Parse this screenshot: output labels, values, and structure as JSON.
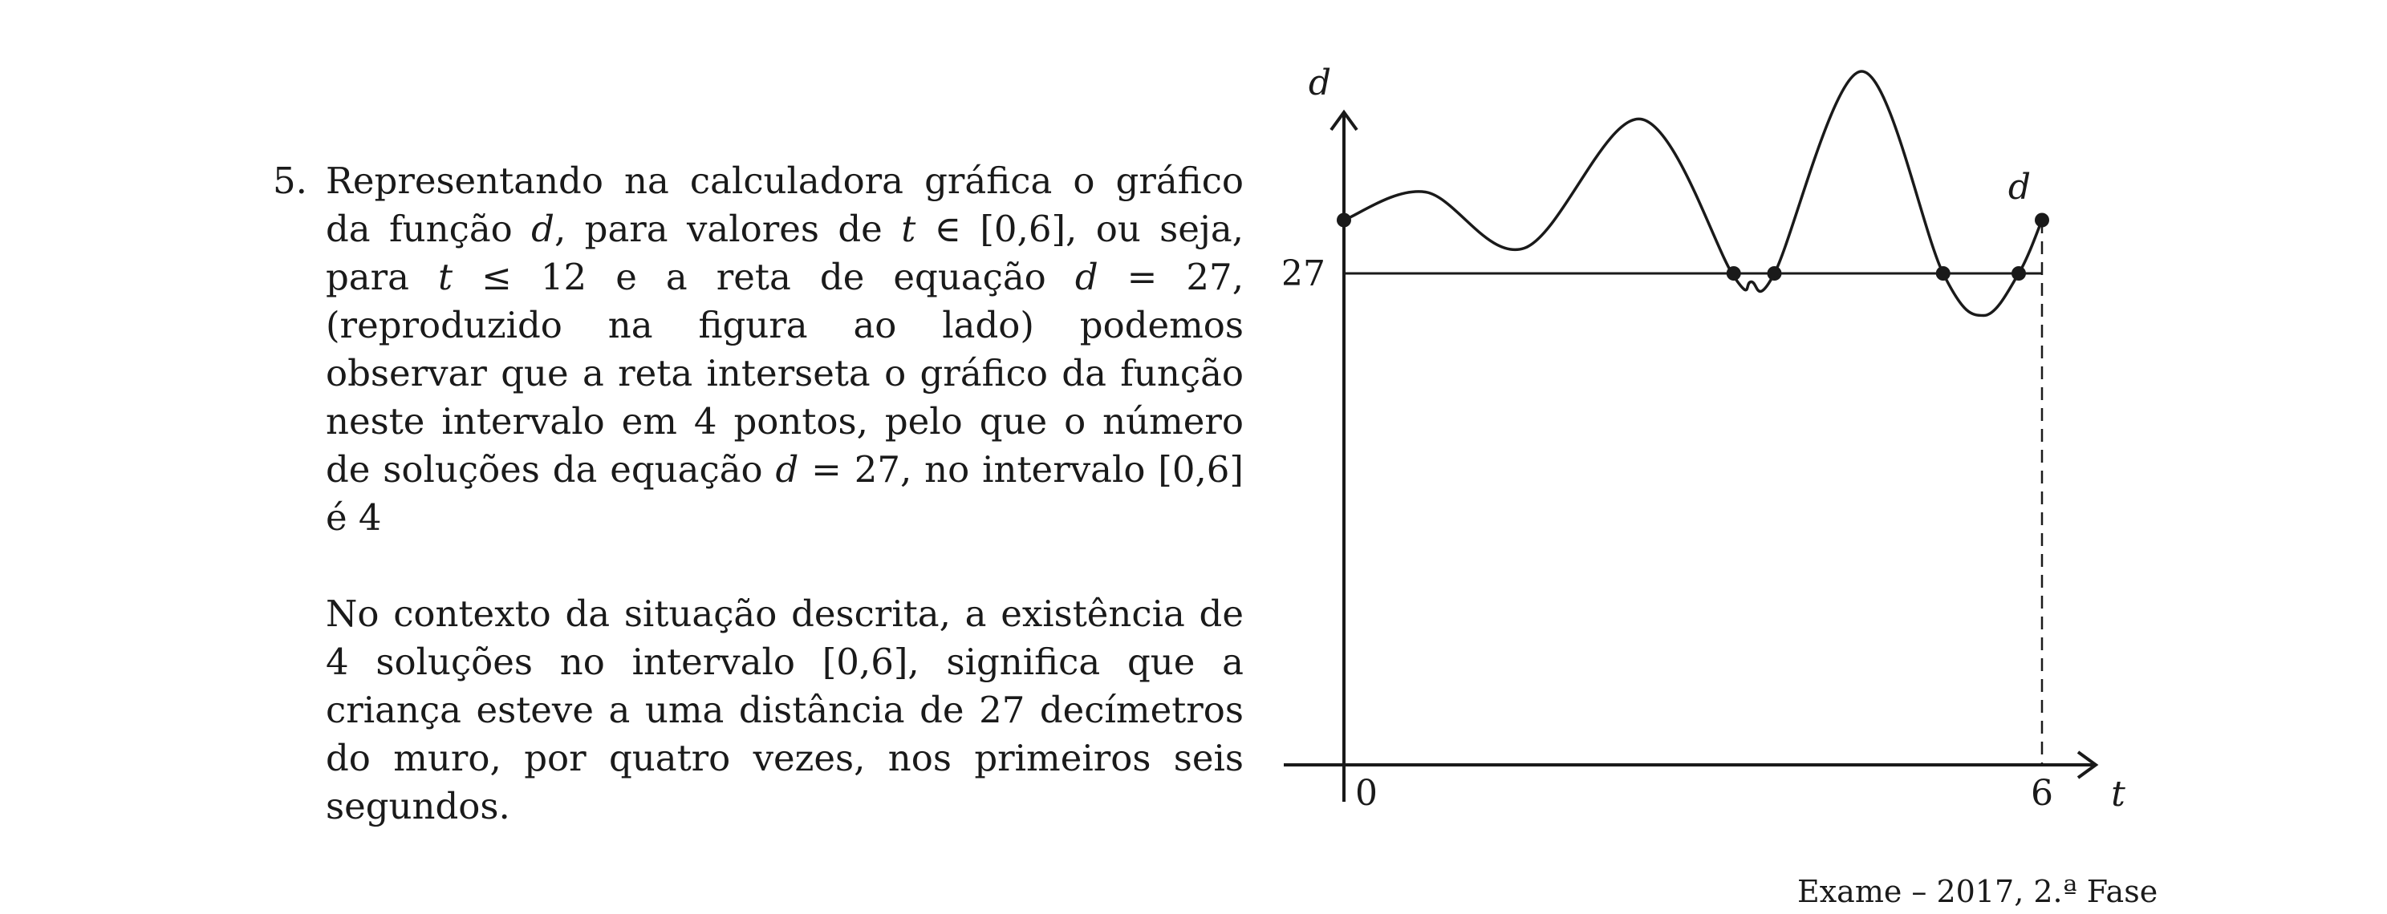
{
  "question": {
    "number": "5.",
    "paragraph1": [
      {
        "t": "Representando na calculadora gráfica o gráfico da função "
      },
      {
        "t": "d",
        "m": 1
      },
      {
        "t": ", para valores de "
      },
      {
        "t": "t",
        "m": 1
      },
      {
        "t": " ∈ [0,6], ou seja, para "
      },
      {
        "t": "t",
        "m": 1
      },
      {
        "t": " ≤ 12 e a reta de equação "
      },
      {
        "t": "d",
        "m": 1
      },
      {
        "t": " = 27, (reproduzido na figura ao lado) podemos observar que a reta interseta o gráfico da função neste intervalo em 4 pontos, pelo que o número de soluções da equação "
      },
      {
        "t": "d",
        "m": 1
      },
      {
        "t": " = 27, no intervalo [0,6] é 4"
      }
    ],
    "paragraph2": "No contexto da situação descrita, a existência de 4 soluções no intervalo [0,6], significa que a criança esteve a uma distância de 27 decímetros do muro, por quatro vezes, nos primeiros seis segundos."
  },
  "figure": {
    "y_axis_label": "d",
    "x_axis_label": "t",
    "curve_label": "d",
    "line_label": "27",
    "x_tick_0": "0",
    "x_tick_6": "6",
    "line_value": 27,
    "x_range": [
      0,
      6
    ],
    "curve": {
      "t": [
        0,
        0.7,
        1.55,
        2.55,
        3.35,
        3.5,
        3.7,
        4.45,
        5.15,
        5.5,
        5.8,
        6.0
      ],
      "d": [
        27.95,
        28.45,
        27.45,
        29.75,
        26.95,
        26.85,
        27.0,
        30.6,
        27.0,
        26.25,
        27.0,
        27.95
      ]
    },
    "intersections": [
      3.35,
      3.7,
      5.15,
      5.8
    ],
    "colors": {
      "ink": "#1a1a1a"
    }
  },
  "source": "Exame – 2017, 2.ª Fase"
}
